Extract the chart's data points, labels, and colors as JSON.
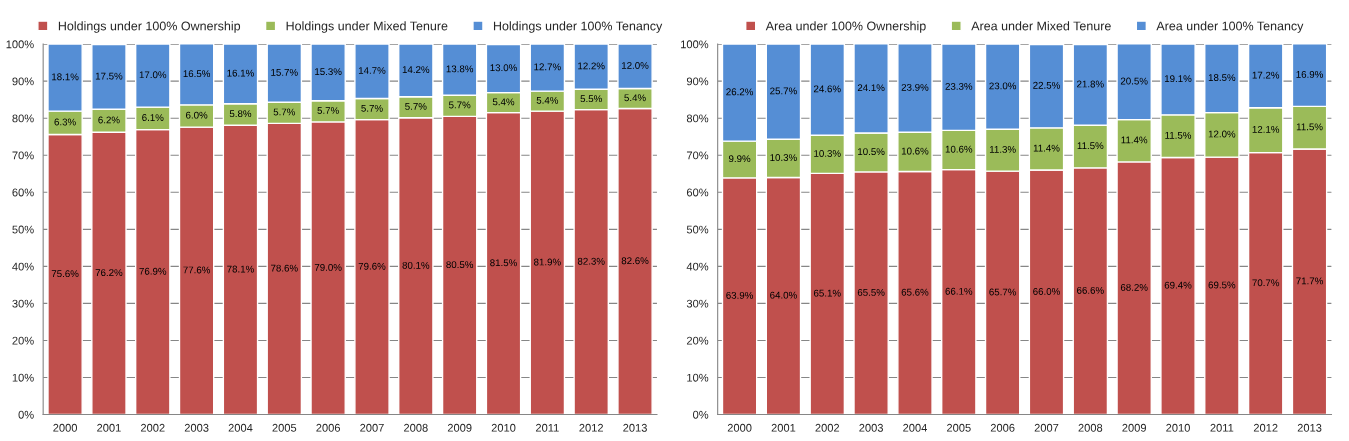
{
  "chart_data": [
    {
      "type": "bar",
      "stacked": true,
      "categories": [
        "2000",
        "2001",
        "2002",
        "2003",
        "2004",
        "2005",
        "2006",
        "2007",
        "2008",
        "2009",
        "2010",
        "2011",
        "2012",
        "2013"
      ],
      "series": [
        {
          "name": "Holdings under 100% Ownership",
          "color": "#c0504d",
          "values": [
            75.6,
            76.2,
            76.9,
            77.6,
            78.1,
            78.6,
            79.0,
            79.6,
            80.1,
            80.5,
            81.5,
            81.9,
            82.3,
            82.6
          ],
          "value_labels": [
            "75.6%",
            "76.2%",
            "76.9%",
            "77.6%",
            "78.1%",
            "78.6%",
            "79.0%",
            "79.6%",
            "80.1%",
            "80.5%",
            "81.5%",
            "81.9%",
            "82.3%",
            "82.6%"
          ]
        },
        {
          "name": "Holdings under Mixed Tenure",
          "color": "#9bbb59",
          "values": [
            6.3,
            6.2,
            6.1,
            6.0,
            5.8,
            5.7,
            5.7,
            5.7,
            5.7,
            5.7,
            5.4,
            5.4,
            5.5,
            5.4
          ],
          "value_labels": [
            "6.3%",
            "6.2%",
            "6.1%",
            "6.0%",
            "5.8%",
            "5.7%",
            "5.7%",
            "5.7%",
            "5.7%",
            "5.7%",
            "5.4%",
            "5.4%",
            "5.5%",
            "5.4%"
          ]
        },
        {
          "name": "Holdings under 100% Tenancy",
          "color": "#558ed5",
          "values": [
            18.1,
            17.5,
            17.0,
            16.5,
            16.1,
            15.7,
            15.3,
            14.7,
            14.2,
            13.8,
            13.0,
            12.7,
            12.2,
            12.0
          ],
          "value_labels": [
            "18.1%",
            "17.5%",
            "17.0%",
            "16.5%",
            "16.1%",
            "15.7%",
            "15.3%",
            "14.7%",
            "14.2%",
            "13.8%",
            "13.0%",
            "12.7%",
            "12.2%",
            "12.0%"
          ]
        }
      ],
      "ylim": [
        0,
        100
      ],
      "yticks": [
        {
          "value": 0,
          "label": "0%"
        },
        {
          "value": 10,
          "label": "10%"
        },
        {
          "value": 20,
          "label": "20%"
        },
        {
          "value": 30,
          "label": "30%"
        },
        {
          "value": 40,
          "label": "40%"
        },
        {
          "value": 50,
          "label": "50%"
        },
        {
          "value": 60,
          "label": "60%"
        },
        {
          "value": 70,
          "label": "70%"
        },
        {
          "value": 80,
          "label": "80%"
        },
        {
          "value": 90,
          "label": "90%"
        },
        {
          "value": 100,
          "label": "100%"
        }
      ],
      "grid": "y",
      "legend": "top"
    },
    {
      "type": "bar",
      "stacked": true,
      "categories": [
        "2000",
        "2001",
        "2002",
        "2003",
        "2004",
        "2005",
        "2006",
        "2007",
        "2008",
        "2009",
        "2010",
        "2011",
        "2012",
        "2013"
      ],
      "series": [
        {
          "name": "Area under 100% Ownership",
          "color": "#c0504d",
          "values": [
            63.9,
            64.0,
            65.1,
            65.5,
            65.6,
            66.1,
            65.7,
            66.0,
            66.6,
            68.2,
            69.4,
            69.5,
            70.7,
            71.7
          ],
          "value_labels": [
            "63.9%",
            "64.0%",
            "65.1%",
            "65.5%",
            "65.6%",
            "66.1%",
            "65.7%",
            "66.0%",
            "66.6%",
            "68.2%",
            "69.4%",
            "69.5%",
            "70.7%",
            "71.7%"
          ]
        },
        {
          "name": "Area under Mixed Tenure",
          "color": "#9bbb59",
          "values": [
            9.9,
            10.3,
            10.3,
            10.5,
            10.6,
            10.6,
            11.3,
            11.4,
            11.5,
            11.4,
            11.5,
            12.0,
            12.1,
            11.5
          ],
          "value_labels": [
            "9.9%",
            "10.3%",
            "10.3%",
            "10.5%",
            "10.6%",
            "10.6%",
            "11.3%",
            "11.4%",
            "11.5%",
            "11.4%",
            "11.5%",
            "12.0%",
            "12.1%",
            "11.5%"
          ]
        },
        {
          "name": "Area under 100% Tenancy",
          "color": "#558ed5",
          "values": [
            26.2,
            25.7,
            24.6,
            24.1,
            23.9,
            23.3,
            23.0,
            22.5,
            21.8,
            20.5,
            19.1,
            18.5,
            17.2,
            16.9
          ],
          "value_labels": [
            "26.2%",
            "25.7%",
            "24.6%",
            "24.1%",
            "23.9%",
            "23.3%",
            "23.0%",
            "22.5%",
            "21.8%",
            "20.5%",
            "19.1%",
            "18.5%",
            "17.2%",
            "16.9%"
          ]
        }
      ],
      "ylim": [
        0,
        100
      ],
      "yticks": [
        {
          "value": 0,
          "label": "0%"
        },
        {
          "value": 10,
          "label": "10%"
        },
        {
          "value": 20,
          "label": "20%"
        },
        {
          "value": 30,
          "label": "30%"
        },
        {
          "value": 40,
          "label": "40%"
        },
        {
          "value": 50,
          "label": "50%"
        },
        {
          "value": 60,
          "label": "60%"
        },
        {
          "value": 70,
          "label": "70%"
        },
        {
          "value": 80,
          "label": "80%"
        },
        {
          "value": 90,
          "label": "90%"
        },
        {
          "value": 100,
          "label": "100%"
        }
      ],
      "grid": "y",
      "legend": "top"
    }
  ]
}
